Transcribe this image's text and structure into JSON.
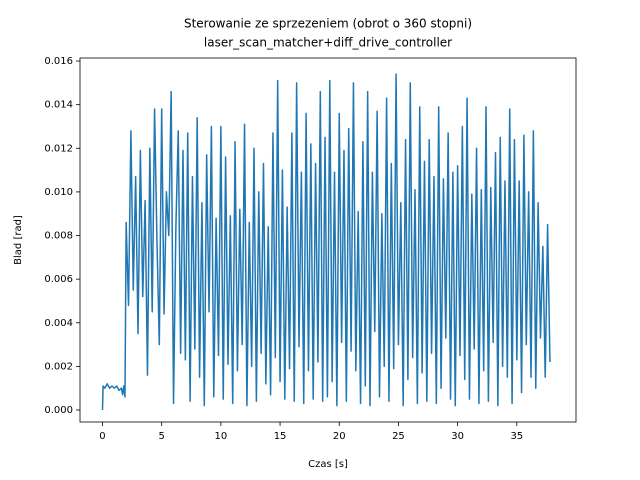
{
  "chart_data": {
    "type": "line",
    "title": "Sterowanie ze sprzezeniem (obrot o 360 stopni)",
    "subtitle": "laser_scan_matcher+diff_drive_controller",
    "x_label": "Czas [s]",
    "y_label": "Blad [rad]",
    "xlim": [
      -1.9,
      40.0
    ],
    "ylim": [
      -0.00055,
      0.01614
    ],
    "xticks": [
      0,
      5,
      10,
      15,
      20,
      25,
      30,
      35
    ],
    "yticks": [
      {
        "value": 0,
        "label": "0.000"
      },
      {
        "value": 0.002,
        "label": "0.002"
      },
      {
        "value": 0.004,
        "label": "0.004"
      },
      {
        "value": 0.006,
        "label": "0.006"
      },
      {
        "value": 0.008,
        "label": "0.008"
      },
      {
        "value": 0.01,
        "label": "0.010"
      },
      {
        "value": 0.012,
        "label": "0.012"
      },
      {
        "value": 0.014,
        "label": "0.014"
      },
      {
        "value": 0.016,
        "label": "0.016"
      }
    ],
    "color": "#1f77b4",
    "x": [
      0,
      0.05,
      0.2,
      0.4,
      0.6,
      0.8,
      1.0,
      1.2,
      1.4,
      1.6,
      1.7,
      1.8,
      1.9,
      2.0,
      2.2,
      2.4,
      2.6,
      2.8,
      3.0,
      3.2,
      3.4,
      3.6,
      3.8,
      4.0,
      4.2,
      4.4,
      4.6,
      4.8,
      5.0,
      5.2,
      5.4,
      5.6,
      5.8,
      6.0,
      6.2,
      6.4,
      6.6,
      6.8,
      7.0,
      7.2,
      7.4,
      7.6,
      7.8,
      8.0,
      8.2,
      8.4,
      8.6,
      8.8,
      9.0,
      9.2,
      9.4,
      9.6,
      9.8,
      10.0,
      10.2,
      10.4,
      10.6,
      10.8,
      11.0,
      11.2,
      11.4,
      11.6,
      11.8,
      12.0,
      12.2,
      12.4,
      12.6,
      12.8,
      13.0,
      13.2,
      13.4,
      13.6,
      13.8,
      14.0,
      14.2,
      14.4,
      14.6,
      14.8,
      15.0,
      15.2,
      15.4,
      15.6,
      15.8,
      16.0,
      16.2,
      16.4,
      16.6,
      16.8,
      17.0,
      17.2,
      17.4,
      17.6,
      17.8,
      18.0,
      18.2,
      18.4,
      18.6,
      18.8,
      19.0,
      19.2,
      19.4,
      19.6,
      19.8,
      20.0,
      20.2,
      20.4,
      20.6,
      20.8,
      21.0,
      21.2,
      21.4,
      21.6,
      21.8,
      22.0,
      22.2,
      22.4,
      22.6,
      22.8,
      23.0,
      23.2,
      23.4,
      23.6,
      23.8,
      24.0,
      24.2,
      24.4,
      24.6,
      24.8,
      25.0,
      25.2,
      25.4,
      25.6,
      25.8,
      26.0,
      26.2,
      26.4,
      26.6,
      26.8,
      27.0,
      27.2,
      27.4,
      27.6,
      27.8,
      28.0,
      28.2,
      28.4,
      28.6,
      28.8,
      29.0,
      29.2,
      29.4,
      29.6,
      29.8,
      30.0,
      30.2,
      30.4,
      30.6,
      30.8,
      31.0,
      31.2,
      31.4,
      31.6,
      31.8,
      32.0,
      32.2,
      32.4,
      32.6,
      32.8,
      33.0,
      33.2,
      33.4,
      33.6,
      33.8,
      34.0,
      34.2,
      34.4,
      34.6,
      34.8,
      35.0,
      35.2,
      35.4,
      35.6,
      35.8,
      36.0,
      36.2,
      36.4,
      36.6,
      36.8,
      37.0,
      37.2,
      37.4,
      37.6,
      37.8
    ],
    "values": [
      0,
      0.0011,
      0.001,
      0.0012,
      0.001,
      0.0011,
      0.001,
      0.0011,
      0.0009,
      0.001,
      0.0007,
      0.0011,
      0.0006,
      0.0086,
      0.0048,
      0.0128,
      0.0055,
      0.0107,
      0.0035,
      0.0119,
      0.0052,
      0.0096,
      0.0016,
      0.012,
      0.0045,
      0.0138,
      0.0078,
      0.003,
      0.0138,
      0.0044,
      0.01,
      0.008,
      0.0146,
      0.0003,
      0.0084,
      0.0128,
      0.0026,
      0.0119,
      0.0023,
      0.0127,
      0.0004,
      0.0107,
      0.0028,
      0.0134,
      0.0015,
      0.0095,
      0.0002,
      0.0117,
      0.0045,
      0.013,
      0.0006,
      0.0088,
      0.0025,
      0.013,
      0.0005,
      0.0116,
      0.0021,
      0.0089,
      0.0003,
      0.0123,
      0.0018,
      0.0092,
      0.003,
      0.0131,
      0.0002,
      0.0086,
      0.002,
      0.012,
      0.0004,
      0.01,
      0.0026,
      0.0113,
      0.0012,
      0.0084,
      0.0007,
      0.0127,
      0.0024,
      0.0151,
      0.0013,
      0.011,
      0.0005,
      0.0093,
      0.0019,
      0.0127,
      0.0004,
      0.015,
      0.0029,
      0.0109,
      0.0003,
      0.0136,
      0.0018,
      0.0122,
      0.0005,
      0.0113,
      0.0022,
      0.0146,
      0.0004,
      0.0125,
      0.0006,
      0.0151,
      0.0013,
      0.0109,
      0.0002,
      0.0136,
      0.0031,
      0.0119,
      0.0004,
      0.0129,
      0.0027,
      0.015,
      0.0018,
      0.0091,
      0.0003,
      0.0123,
      0.0011,
      0.0146,
      0.0002,
      0.0109,
      0.0036,
      0.0137,
      0.0006,
      0.009,
      0.002,
      0.0143,
      0.0004,
      0.0113,
      0.0019,
      0.0154,
      0.003,
      0.0095,
      0.0002,
      0.0124,
      0.0014,
      0.015,
      0.0024,
      0.0101,
      0.0003,
      0.0139,
      0.0017,
      0.0114,
      0.0004,
      0.0124,
      0.0026,
      0.0107,
      0.0003,
      0.0139,
      0.001,
      0.0106,
      0.0033,
      0.0127,
      0.0005,
      0.0109,
      0.0002,
      0.0112,
      0.0025,
      0.013,
      0.0014,
      0.0143,
      0.0005,
      0.0099,
      0.0028,
      0.012,
      0.0003,
      0.0101,
      0.0018,
      0.0139,
      0.0004,
      0.0102,
      0.0031,
      0.0118,
      0.0002,
      0.0125,
      0.002,
      0.0105,
      0.0015,
      0.0138,
      0.0003,
      0.0124,
      0.0023,
      0.0105,
      0.0008,
      0.0126,
      0.003,
      0.01,
      0.0015,
      0.0128,
      0.001,
      0.0095,
      0.0033,
      0.0075,
      0.0015,
      0.0085,
      0.0022
    ]
  }
}
